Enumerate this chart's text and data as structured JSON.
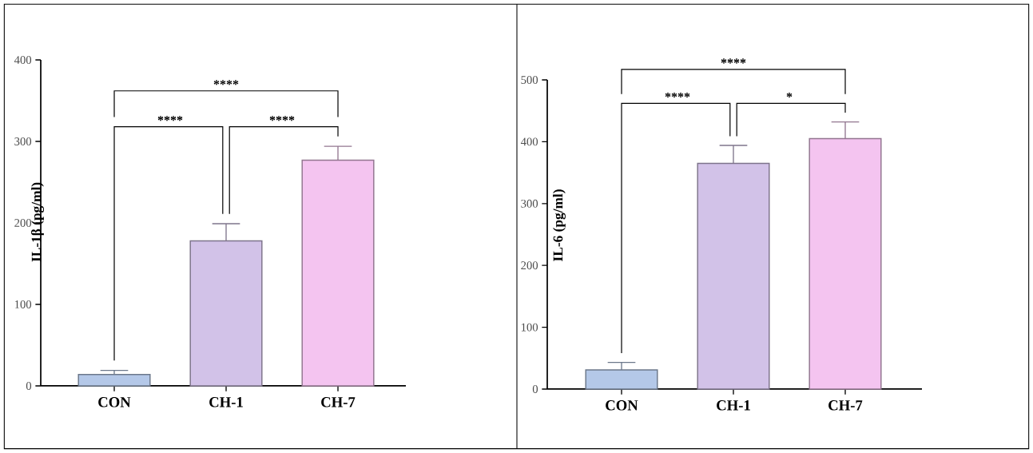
{
  "chart_data": [
    {
      "type": "bar",
      "ylabel": "IL-1β (pg/ml)",
      "categories": [
        "CON",
        "CH-1",
        "CH-7"
      ],
      "values": [
        14,
        178,
        277
      ],
      "errors": [
        5,
        21,
        17
      ],
      "colors": [
        "#b4c8e8",
        "#d2c2e8",
        "#f4c4f0"
      ],
      "ylim": [
        0,
        400
      ],
      "yticks": [
        0,
        100,
        200,
        300,
        400
      ],
      "annotations": [
        "****",
        "****",
        "****"
      ]
    },
    {
      "type": "bar",
      "ylabel": "IL-6 (pg/ml)",
      "categories": [
        "CON",
        "CH-1",
        "CH-7"
      ],
      "values": [
        31,
        365,
        405
      ],
      "errors": [
        12,
        29,
        27
      ],
      "colors": [
        "#b4c8e8",
        "#d2c2e8",
        "#f4c4f0"
      ],
      "ylim": [
        0,
        500
      ],
      "yticks": [
        0,
        100,
        200,
        300,
        400,
        500
      ],
      "annotations": [
        "****",
        "****",
        "*"
      ]
    }
  ]
}
